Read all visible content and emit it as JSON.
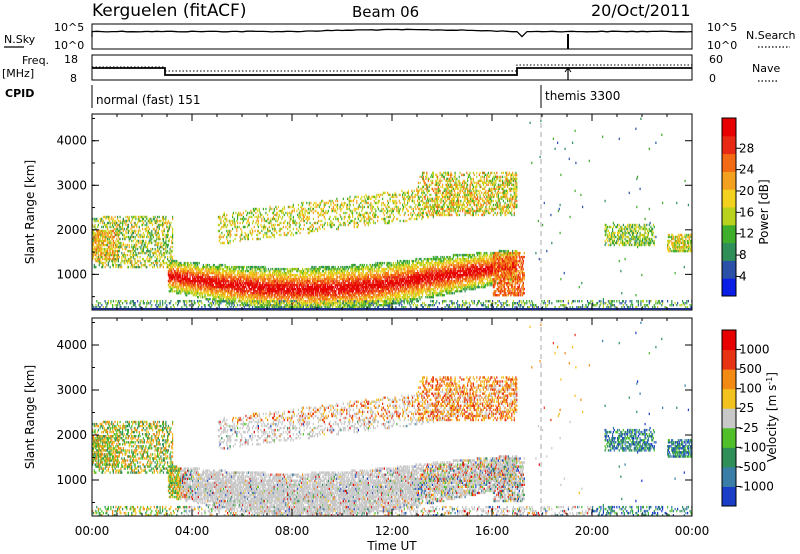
{
  "header": {
    "station": "Kerguelen (fitACF)",
    "beam": "Beam 06",
    "date": "20/Oct/2011"
  },
  "panels_top": {
    "nsky": {
      "label": "N.Sky",
      "ticks": [
        "10^5",
        "10^0"
      ],
      "right_ticks": [
        "10^5",
        "10^0"
      ],
      "right_label": "N.Search"
    },
    "freq": {
      "label": "Freq.",
      "unit": "[MHz]",
      "ticks": [
        "18",
        "8"
      ],
      "right_ticks": [
        "60",
        "0"
      ],
      "right_label": "Nave"
    },
    "cpid": {
      "label": "CPID",
      "modes": [
        {
          "name": "normal (fast) 151",
          "start_hour": 0,
          "end_hour": 18
        },
        {
          "name": "themis 3300",
          "start_hour": 18,
          "end_hour": 24
        }
      ]
    }
  },
  "chart_data": [
    {
      "type": "heatmap",
      "name": "power-panel",
      "ylabel": "Slant Range [km]",
      "xlim": [
        0,
        24
      ],
      "ylim": [
        200,
        4600
      ],
      "yticks": [
        "1000",
        "2000",
        "3000",
        "4000"
      ],
      "colorbar": {
        "label": "Power [dB]",
        "ticks": [
          "4",
          "8",
          "12",
          "16",
          "20",
          "24",
          "28"
        ],
        "colors": [
          "#0a1ee6",
          "#2a50a8",
          "#2e8f58",
          "#3fae2a",
          "#b8d21e",
          "#f2d21e",
          "#f3a01e",
          "#f36a14",
          "#e82a14",
          "#e60000"
        ]
      }
    },
    {
      "type": "heatmap",
      "name": "velocity-panel",
      "ylabel": "Slant Range [km]",
      "xlim": [
        0,
        24
      ],
      "ylim": [
        200,
        4600
      ],
      "yticks": [
        "1000",
        "2000",
        "3000",
        "4000"
      ],
      "xticks": [
        "00:00",
        "04:00",
        "08:00",
        "12:00",
        "16:00",
        "20:00",
        "00:00"
      ],
      "xlabel": "Time UT",
      "colorbar": {
        "label": "Velocity [m s",
        "label_sup": "-1",
        "label_end": "]",
        "ticks": [
          "1000",
          "500",
          "100",
          "25",
          "-25",
          "-100",
          "-500",
          "-1000"
        ],
        "colors": [
          "#1a3ec8",
          "#3a7ea8",
          "#2e8f58",
          "#4fc02a",
          "#c8c8c8",
          "#f2c21e",
          "#f38a14",
          "#e83214",
          "#e60000"
        ]
      }
    }
  ],
  "colors": {
    "ground_scatter": "#c8c8c8",
    "frame": "#000000",
    "dashed_marker": "#aaaaaa"
  }
}
